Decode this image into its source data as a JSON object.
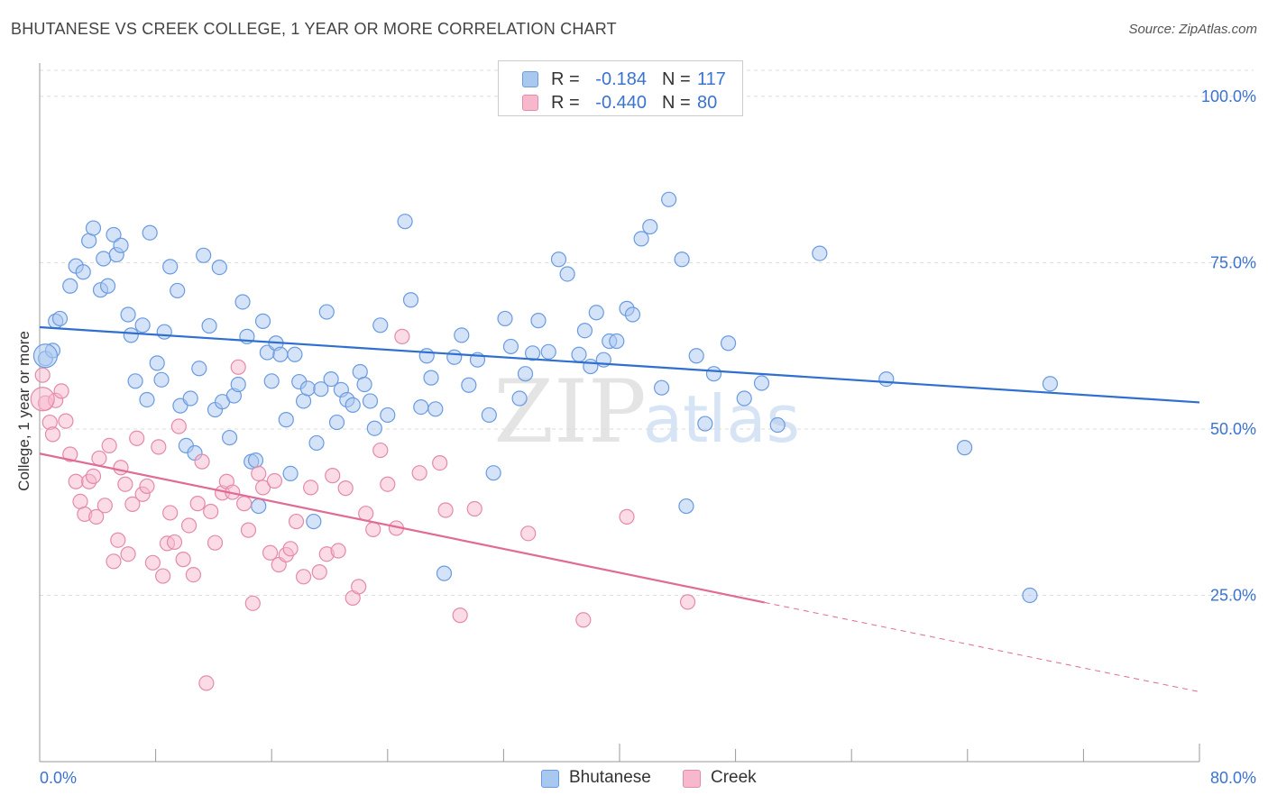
{
  "header": {
    "title": "BHUTANESE VS CREEK COLLEGE, 1 YEAR OR MORE CORRELATION CHART",
    "source": "Source: ZipAtlas.com"
  },
  "colors": {
    "blue": "#3a73d0",
    "blue_fill": "#a9c8f0",
    "blue_line": "#2f6fcf",
    "pink": "#e06b95",
    "pink_fill": "#f7b8cc",
    "grid": "#dddddd",
    "axis": "#999999"
  },
  "legend_top": {
    "rows": [
      {
        "r_label": "R =",
        "r_value": "-0.184",
        "n_label": "N =",
        "n_value": "117"
      },
      {
        "r_label": "R =",
        "r_value": "-0.440",
        "n_label": "N =",
        "n_value": "80"
      }
    ]
  },
  "legend_bottom": {
    "items": [
      {
        "label": "Bhutanese"
      },
      {
        "label": "Creek"
      }
    ]
  },
  "watermark": {
    "zip": "ZIP",
    "atlas": "atlas"
  },
  "chart_data": {
    "type": "scatter",
    "title": "BHUTANESE VS CREEK COLLEGE, 1 YEAR OR MORE CORRELATION CHART",
    "xlabel": "",
    "ylabel": "College, 1 year or more",
    "xlim": [
      0,
      80
    ],
    "ylim": [
      0,
      105
    ],
    "x_tick_labels": [
      {
        "value": 0,
        "label": "0.0%"
      },
      {
        "value": 80,
        "label": "80.0%"
      }
    ],
    "y_tick_labels": [
      {
        "value": 25,
        "label": "25.0%"
      },
      {
        "value": 50,
        "label": "50.0%"
      },
      {
        "value": 75,
        "label": "75.0%"
      },
      {
        "value": 100,
        "label": "100.0%"
      }
    ],
    "grid": true,
    "legend_position": "top-center",
    "series": [
      {
        "name": "Bhutanese",
        "color": "#a9c8f0",
        "stroke": "#6a9be0",
        "r": -0.184,
        "n": 117,
        "trend": {
          "x": [
            0,
            80
          ],
          "y": [
            65.3,
            54.0
          ],
          "dashed_from": null
        },
        "points": [
          [
            0.4,
            60.6
          ],
          [
            0.9,
            61.8
          ],
          [
            1.1,
            66.2
          ],
          [
            1.4,
            66.6
          ],
          [
            2.1,
            71.5
          ],
          [
            2.5,
            74.5
          ],
          [
            3.0,
            73.6
          ],
          [
            3.4,
            78.3
          ],
          [
            3.7,
            80.2
          ],
          [
            4.2,
            70.9
          ],
          [
            4.4,
            75.6
          ],
          [
            4.7,
            71.5
          ],
          [
            5.1,
            79.2
          ],
          [
            5.3,
            76.2
          ],
          [
            5.6,
            77.6
          ],
          [
            6.1,
            67.2
          ],
          [
            6.3,
            64.1
          ],
          [
            6.6,
            57.2
          ],
          [
            7.1,
            65.6
          ],
          [
            7.4,
            54.4
          ],
          [
            7.6,
            79.5
          ],
          [
            8.1,
            59.9
          ],
          [
            8.4,
            57.4
          ],
          [
            8.6,
            64.6
          ],
          [
            9.0,
            74.4
          ],
          [
            9.5,
            70.8
          ],
          [
            9.7,
            53.5
          ],
          [
            10.1,
            47.5
          ],
          [
            10.4,
            54.6
          ],
          [
            10.7,
            46.4
          ],
          [
            11.0,
            59.1
          ],
          [
            11.3,
            76.1
          ],
          [
            11.7,
            65.5
          ],
          [
            12.1,
            52.9
          ],
          [
            12.4,
            74.3
          ],
          [
            12.6,
            54.1
          ],
          [
            13.1,
            48.7
          ],
          [
            13.4,
            55.0
          ],
          [
            13.7,
            56.7
          ],
          [
            14.0,
            69.1
          ],
          [
            14.3,
            63.9
          ],
          [
            14.6,
            45.1
          ],
          [
            14.9,
            45.3
          ],
          [
            15.1,
            38.4
          ],
          [
            15.4,
            66.2
          ],
          [
            15.7,
            61.5
          ],
          [
            16.0,
            57.2
          ],
          [
            16.3,
            62.9
          ],
          [
            16.6,
            61.2
          ],
          [
            17.0,
            51.4
          ],
          [
            17.3,
            43.3
          ],
          [
            17.6,
            61.2
          ],
          [
            17.9,
            57.1
          ],
          [
            18.2,
            54.2
          ],
          [
            18.5,
            56.1
          ],
          [
            18.9,
            36.1
          ],
          [
            19.1,
            47.9
          ],
          [
            19.4,
            56.0
          ],
          [
            19.8,
            67.6
          ],
          [
            20.1,
            57.5
          ],
          [
            20.5,
            51.0
          ],
          [
            20.8,
            55.9
          ],
          [
            21.2,
            54.4
          ],
          [
            21.6,
            53.6
          ],
          [
            22.1,
            58.6
          ],
          [
            22.4,
            56.7
          ],
          [
            22.8,
            54.2
          ],
          [
            23.1,
            50.1
          ],
          [
            23.5,
            65.6
          ],
          [
            24.0,
            52.1
          ],
          [
            25.2,
            81.2
          ],
          [
            25.6,
            69.4
          ],
          [
            26.3,
            53.3
          ],
          [
            26.7,
            61.0
          ],
          [
            27.0,
            57.7
          ],
          [
            27.3,
            53.0
          ],
          [
            27.9,
            28.3
          ],
          [
            28.6,
            60.8
          ],
          [
            29.1,
            64.1
          ],
          [
            29.6,
            56.6
          ],
          [
            30.2,
            60.4
          ],
          [
            31.0,
            52.1
          ],
          [
            31.3,
            43.4
          ],
          [
            32.1,
            66.6
          ],
          [
            32.5,
            62.4
          ],
          [
            33.1,
            54.6
          ],
          [
            33.5,
            58.3
          ],
          [
            34.0,
            61.4
          ],
          [
            34.4,
            66.3
          ],
          [
            35.1,
            61.6
          ],
          [
            35.8,
            75.5
          ],
          [
            36.4,
            73.3
          ],
          [
            37.2,
            61.2
          ],
          [
            37.6,
            64.8
          ],
          [
            38.0,
            59.4
          ],
          [
            38.4,
            67.5
          ],
          [
            38.9,
            60.4
          ],
          [
            39.3,
            63.2
          ],
          [
            39.8,
            63.2
          ],
          [
            40.5,
            68.1
          ],
          [
            40.9,
            67.2
          ],
          [
            41.5,
            78.6
          ],
          [
            42.1,
            80.4
          ],
          [
            42.9,
            56.2
          ],
          [
            43.4,
            84.5
          ],
          [
            44.3,
            75.5
          ],
          [
            44.6,
            38.4
          ],
          [
            45.3,
            61.0
          ],
          [
            45.9,
            50.8
          ],
          [
            46.5,
            58.3
          ],
          [
            47.5,
            62.9
          ],
          [
            48.6,
            54.6
          ],
          [
            49.8,
            56.9
          ],
          [
            50.9,
            50.6
          ],
          [
            53.8,
            76.4
          ],
          [
            58.4,
            57.5
          ],
          [
            63.8,
            47.2
          ],
          [
            68.3,
            25.0
          ],
          [
            69.7,
            56.8
          ]
        ]
      },
      {
        "name": "Creek",
        "color": "#f7b8cc",
        "stroke": "#e48aab",
        "r": -0.44,
        "n": 80,
        "trend": {
          "x": [
            0,
            80
          ],
          "y": [
            46.3,
            10.5
          ],
          "dashed_from": 50
        },
        "points": [
          [
            0.2,
            58.1
          ],
          [
            0.4,
            53.9
          ],
          [
            0.7,
            51.0
          ],
          [
            0.9,
            49.2
          ],
          [
            1.1,
            54.3
          ],
          [
            1.5,
            55.7
          ],
          [
            1.8,
            51.2
          ],
          [
            2.1,
            46.2
          ],
          [
            2.5,
            42.1
          ],
          [
            2.8,
            39.1
          ],
          [
            3.1,
            37.2
          ],
          [
            3.4,
            42.1
          ],
          [
            3.7,
            42.9
          ],
          [
            3.9,
            36.8
          ],
          [
            4.1,
            45.6
          ],
          [
            4.5,
            38.5
          ],
          [
            4.8,
            47.5
          ],
          [
            5.1,
            30.1
          ],
          [
            5.4,
            33.3
          ],
          [
            5.6,
            44.2
          ],
          [
            5.9,
            41.7
          ],
          [
            6.1,
            31.2
          ],
          [
            6.4,
            38.7
          ],
          [
            6.7,
            48.6
          ],
          [
            7.1,
            40.2
          ],
          [
            7.4,
            41.4
          ],
          [
            7.8,
            29.9
          ],
          [
            8.2,
            47.3
          ],
          [
            8.5,
            27.9
          ],
          [
            8.8,
            32.8
          ],
          [
            9.0,
            37.4
          ],
          [
            9.3,
            33.0
          ],
          [
            9.6,
            50.4
          ],
          [
            9.9,
            30.4
          ],
          [
            10.3,
            35.5
          ],
          [
            10.6,
            28.1
          ],
          [
            10.9,
            38.8
          ],
          [
            11.2,
            45.1
          ],
          [
            11.5,
            11.8
          ],
          [
            11.8,
            37.6
          ],
          [
            12.1,
            32.9
          ],
          [
            12.6,
            40.4
          ],
          [
            12.9,
            42.1
          ],
          [
            13.3,
            40.5
          ],
          [
            13.7,
            59.3
          ],
          [
            14.1,
            38.8
          ],
          [
            14.4,
            34.8
          ],
          [
            14.7,
            23.8
          ],
          [
            15.1,
            43.3
          ],
          [
            15.4,
            41.2
          ],
          [
            15.9,
            31.4
          ],
          [
            16.2,
            42.2
          ],
          [
            16.5,
            29.6
          ],
          [
            17.0,
            31.1
          ],
          [
            17.3,
            32.0
          ],
          [
            17.7,
            36.1
          ],
          [
            18.2,
            27.8
          ],
          [
            18.7,
            41.2
          ],
          [
            19.3,
            28.5
          ],
          [
            19.8,
            31.2
          ],
          [
            20.2,
            43.0
          ],
          [
            20.6,
            31.7
          ],
          [
            21.1,
            41.1
          ],
          [
            21.6,
            24.6
          ],
          [
            22.0,
            26.3
          ],
          [
            22.5,
            37.3
          ],
          [
            23.0,
            34.9
          ],
          [
            23.5,
            46.8
          ],
          [
            24.0,
            41.7
          ],
          [
            24.6,
            35.1
          ],
          [
            25.0,
            63.9
          ],
          [
            26.2,
            43.4
          ],
          [
            27.6,
            44.9
          ],
          [
            28.0,
            37.8
          ],
          [
            29.0,
            22.0
          ],
          [
            30.0,
            38.0
          ],
          [
            33.7,
            34.3
          ],
          [
            37.5,
            21.3
          ],
          [
            40.5,
            36.8
          ],
          [
            44.7,
            24.0
          ]
        ]
      }
    ]
  }
}
